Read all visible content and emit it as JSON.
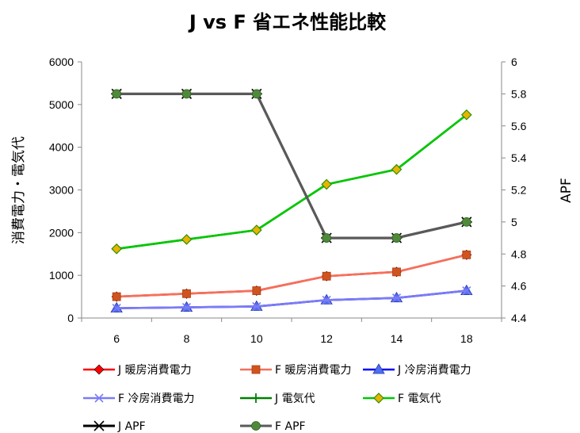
{
  "chart_data": {
    "type": "line",
    "title": "J vs F 省エネ性能比較",
    "ylabel": "消費電力・電気代",
    "y2label": "APF",
    "categories": [
      "6",
      "8",
      "10",
      "12",
      "14",
      "18"
    ],
    "ylim": [
      0,
      6000
    ],
    "y2lim": [
      4.4,
      6
    ],
    "yticks": [
      "0",
      "1000",
      "2000",
      "3000",
      "4000",
      "5000",
      "6000"
    ],
    "y2ticks": [
      "4.4",
      "4.6",
      "4.8",
      "5",
      "5.2",
      "5.4",
      "5.6",
      "5.8",
      "6"
    ],
    "grid": false,
    "legend_position": "bottom",
    "series": [
      {
        "name": "J 暖房消費電力",
        "axis": "left",
        "color": "#ff0000",
        "marker": "diamond",
        "values": [
          500,
          570,
          640,
          980,
          1080,
          1480
        ]
      },
      {
        "name": "F 暖房消費電力",
        "axis": "left",
        "color": "#f4715c",
        "marker": "square",
        "values": [
          500,
          570,
          640,
          980,
          1080,
          1480
        ]
      },
      {
        "name": "J 冷房消費電力",
        "axis": "left",
        "color": "#0000ff",
        "marker": "triangle",
        "values": [
          230,
          250,
          270,
          420,
          470,
          640
        ]
      },
      {
        "name": "F 冷房消費電力",
        "axis": "left",
        "color": "#7b7bf6",
        "marker": "x",
        "values": [
          230,
          250,
          270,
          420,
          470,
          640
        ]
      },
      {
        "name": "J 電気代",
        "axis": "left",
        "color": "#008000",
        "marker": "plus",
        "values": [
          1620,
          1840,
          2060,
          3130,
          3480,
          4760
        ]
      },
      {
        "name": "F 電気代",
        "axis": "left",
        "color": "#00c800",
        "marker": "diamond-gold",
        "values": [
          1620,
          1840,
          2060,
          3130,
          3480,
          4760
        ]
      },
      {
        "name": "J APF",
        "axis": "right",
        "color": "#000000",
        "marker": "star",
        "values": [
          5.8,
          5.8,
          5.8,
          4.9,
          4.9,
          5.0
        ]
      },
      {
        "name": "F APF",
        "axis": "right",
        "color": "#5a5a5a",
        "marker": "circle-green",
        "values": [
          5.8,
          5.8,
          5.8,
          4.9,
          4.9,
          5.0
        ]
      }
    ]
  }
}
